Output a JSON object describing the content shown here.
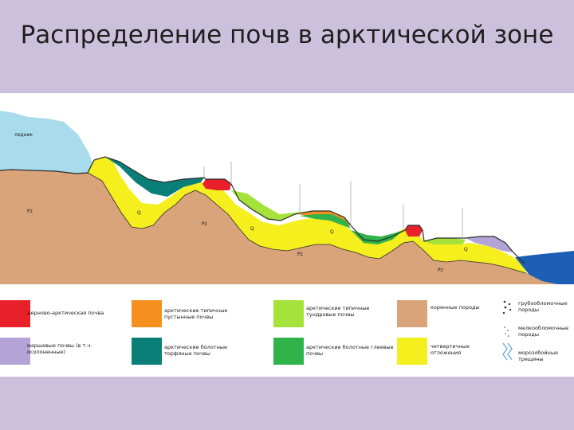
{
  "title": "Распределение почв в арктической зоне",
  "diagram": {
    "labels": {
      "glacier": "ледник",
      "pz1": "Pz",
      "pz2": "Pz",
      "pz3": "Pz",
      "pz4": "Pz",
      "q1": "Q",
      "q2": "Q",
      "q3": "Q",
      "q4": "Q"
    }
  },
  "legend": [
    {
      "id": "sod-arctic",
      "label": "дерново-арктическая почва",
      "color": "#e8202a"
    },
    {
      "id": "desert",
      "label": "арктические типичные пустынные почвы",
      "color": "#f5901e"
    },
    {
      "id": "tundra",
      "label": "арктические типичные тундровые почвы",
      "color": "#a6e33a"
    },
    {
      "id": "bedrock",
      "label": "коренные породы",
      "color": "#d9a47a"
    },
    {
      "id": "gravel",
      "label": "грубообломочные породы"
    },
    {
      "id": "marsh",
      "label": "маршевые почвы (в т.ч. осолоненные)",
      "color": "#b3a3d6"
    },
    {
      "id": "bog",
      "label": "арктические болотные торфяные почвы",
      "color": "#0a7f78"
    },
    {
      "id": "gley",
      "label": "арктические болотные глеевые почвы",
      "color": "#2fb34a"
    },
    {
      "id": "quaternary",
      "label": "четвертичные отложения",
      "color": "#f5ef1e"
    },
    {
      "id": "fine",
      "label": "мелкообломочные породы"
    },
    {
      "id": "sea",
      "label": "морозобойные трещины"
    }
  ]
}
